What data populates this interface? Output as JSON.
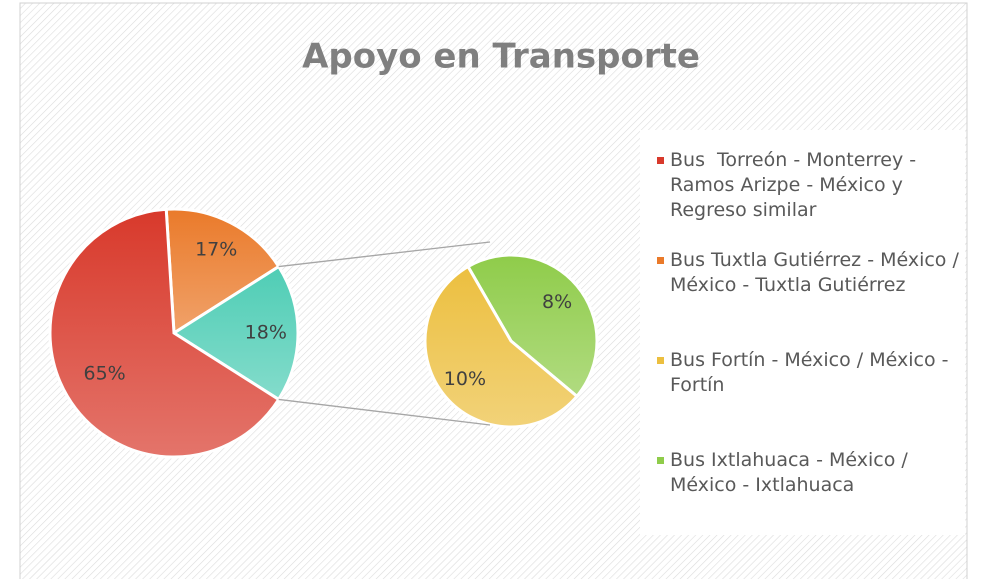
{
  "chart_data": {
    "type": "pie-of-pie",
    "title": "Apoyo en Transporte",
    "categories": [
      "Bus  Torreón - Monterrey - Ramos Arizpe - México y Regreso similar",
      "Bus Tuxtla Gutiérrez - México / México - Tuxtla Gutiérrez",
      "Bus Fortín - México / México - Fortín",
      "Bus Ixtlahuaca - México / México - Ixtlahuaca"
    ],
    "values": [
      65,
      17,
      10,
      8
    ],
    "value_labels": [
      "65%",
      "17%",
      "10%",
      "8%"
    ],
    "colors": [
      "#d8392b",
      "#ea7a2a",
      "#ecbf3f",
      "#8fcc4a"
    ],
    "combined_value": 18,
    "combined_label": "18%",
    "combined_color": "#4fcdb5",
    "legend": "right"
  }
}
